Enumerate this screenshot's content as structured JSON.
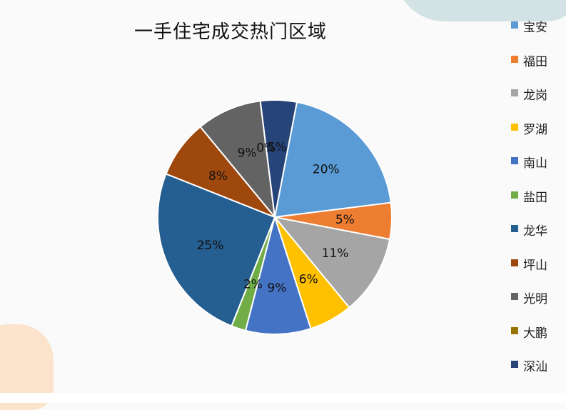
{
  "chart_data": {
    "type": "pie",
    "title": "一手住宅成交热门区域",
    "categories": [
      "宝安",
      "福田",
      "龙岗",
      "罗湖",
      "南山",
      "盐田",
      "龙华",
      "坪山",
      "光明",
      "大鹏",
      "深汕"
    ],
    "values": [
      20,
      5,
      11,
      6,
      9,
      2,
      25,
      8,
      9,
      0,
      5
    ],
    "labels": [
      "20%",
      "5%",
      "11%",
      "6%",
      "9%",
      "2%",
      "25%",
      "8%",
      "9%",
      "0%",
      "5%"
    ],
    "colors": [
      "#5b9bd5",
      "#ed7d31",
      "#a5a5a5",
      "#ffc000",
      "#4472c4",
      "#70ad47",
      "#255e91",
      "#9e480e",
      "#636363",
      "#997300",
      "#264478"
    ],
    "legend_position": "right"
  }
}
